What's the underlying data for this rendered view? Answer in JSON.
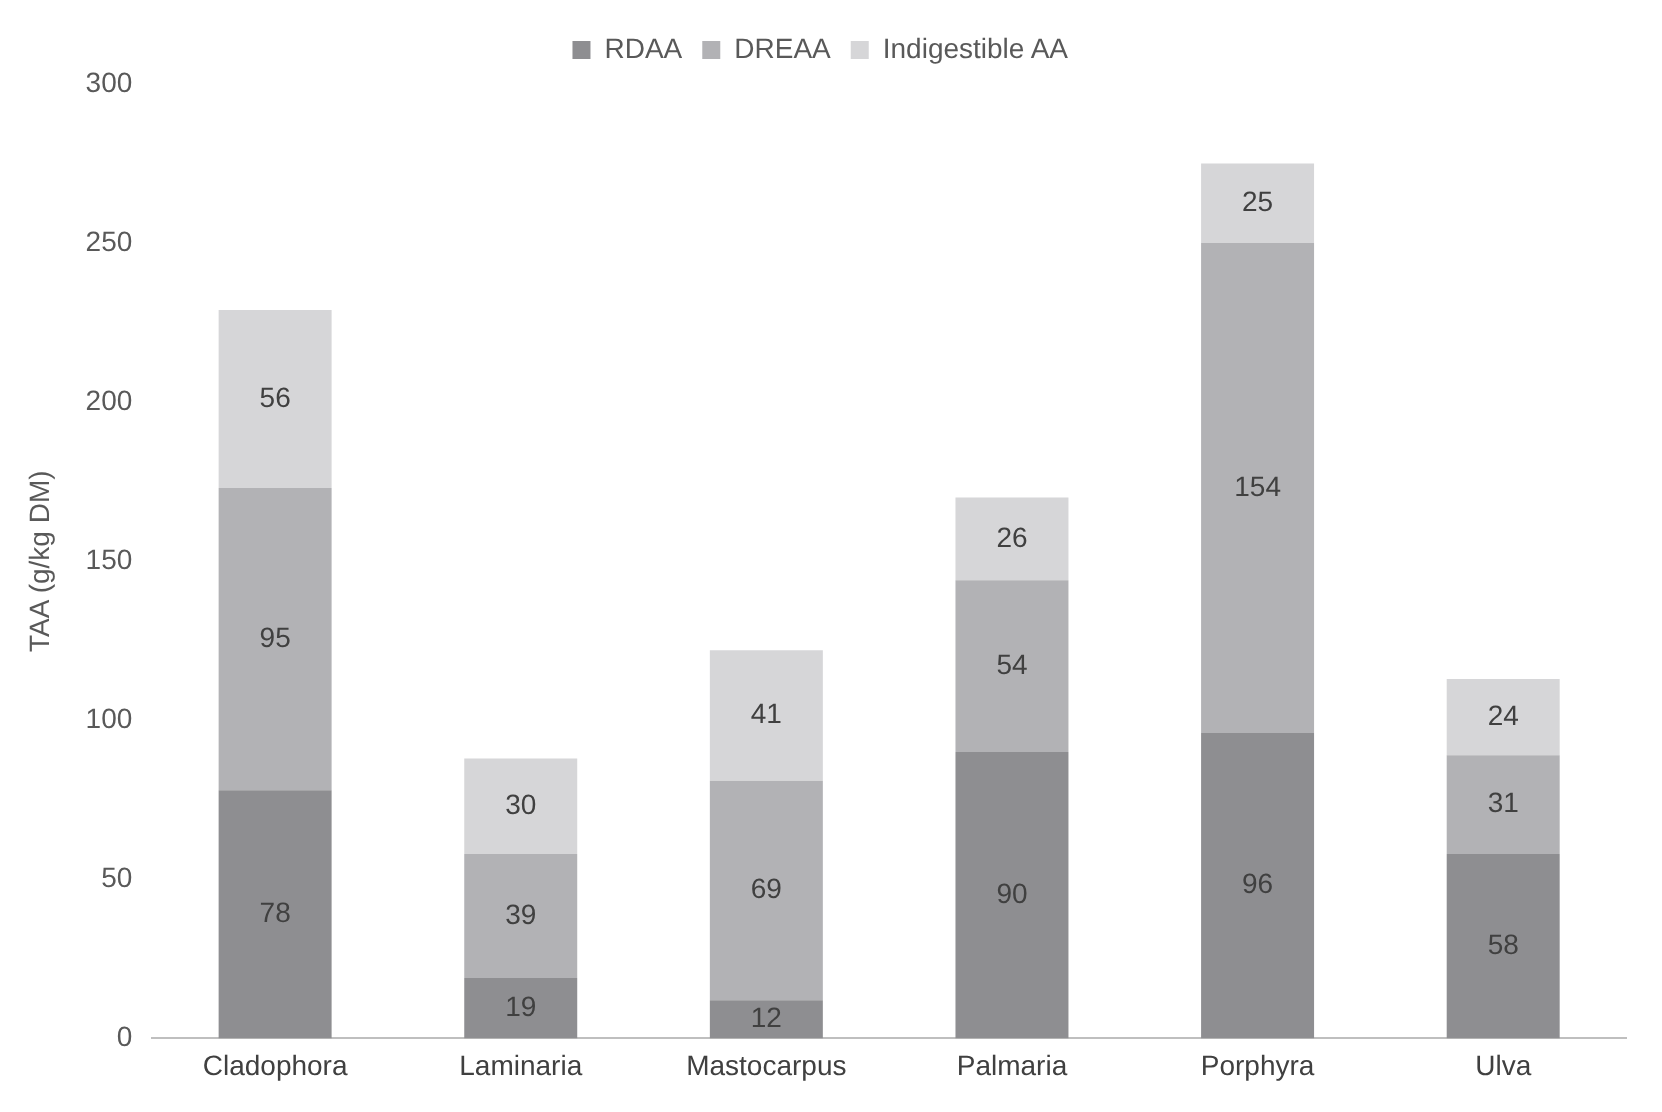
{
  "chart_data": {
    "type": "bar",
    "stacked": true,
    "ylabel": "TAA (g/kg DM)",
    "categories": [
      "Cladophora",
      "Laminaria",
      "Mastocarpus",
      "Palmaria",
      "Porphyra",
      "Ulva"
    ],
    "series": [
      {
        "name": "RDAA",
        "color": "#8e8e91",
        "values": [
          78,
          19,
          12,
          90,
          96,
          58
        ]
      },
      {
        "name": "DREAA",
        "color": "#b2b2b5",
        "values": [
          95,
          39,
          69,
          54,
          154,
          31
        ]
      },
      {
        "name": "Indigestible AA",
        "color": "#d6d6d8",
        "values": [
          56,
          30,
          41,
          26,
          25,
          24
        ]
      }
    ],
    "ylim": [
      0,
      300
    ],
    "yticks": [
      0,
      50,
      100,
      150,
      200,
      250,
      300
    ],
    "grid": false,
    "legend": "top",
    "data_labels": true
  }
}
